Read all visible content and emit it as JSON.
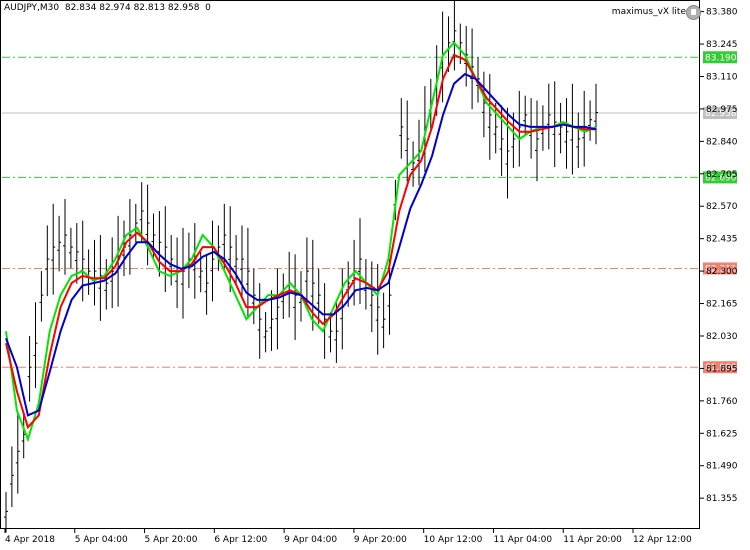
{
  "header": {
    "symbol": "AUDJPY,M30",
    "ohlc": "82.834 82.974 82.813 82.958",
    "extra": "0"
  },
  "indicator": {
    "name": "maximus_vX lite",
    "icon": "gear-icon"
  },
  "chart_data": {
    "type": "line",
    "title": "AUDJPY,M30",
    "ylim": [
      81.235,
      83.42
    ],
    "y_ticks": [
      "83.380",
      "83.245",
      "83.110",
      "82.975",
      "82.840",
      "82.705",
      "82.570",
      "82.435",
      "82.300",
      "82.165",
      "82.030",
      "81.895",
      "81.760",
      "81.625",
      "81.490",
      "81.355"
    ],
    "x_ticks": [
      "4 Apr 2018",
      "5 Apr 04:00",
      "5 Apr 20:00",
      "6 Apr 12:00",
      "9 Apr 04:00",
      "9 Apr 20:00",
      "10 Apr 12:00",
      "11 Apr 04:00",
      "11 Apr 20:00",
      "12 Apr 12:00"
    ],
    "levels": [
      {
        "value": 83.19,
        "label": "83.190",
        "color": "#32cd32",
        "style": "dashdot"
      },
      {
        "value": 82.958,
        "label": "82.958",
        "color": "#c0c0c0",
        "style": "solid"
      },
      {
        "value": 82.69,
        "label": "82.690",
        "color": "#32cd32",
        "style": "dashdot"
      },
      {
        "value": 82.311,
        "label": "82.311",
        "color": "#f08070",
        "style": "dashdot"
      },
      {
        "value": 81.9,
        "label": "81.900",
        "color": "#f08070",
        "style": "dashdot"
      }
    ],
    "price_bars": [
      81.3,
      81.45,
      81.55,
      81.62,
      81.9,
      82.0,
      82.2,
      82.35,
      82.4,
      82.42,
      82.45,
      82.4,
      82.38,
      82.35,
      82.3,
      82.3,
      82.28,
      82.25,
      82.3,
      82.35,
      82.4,
      82.45,
      82.5,
      82.55,
      82.5,
      82.45,
      82.42,
      82.4,
      82.35,
      82.3,
      82.3,
      82.35,
      82.35,
      82.3,
      82.25,
      82.35,
      82.4,
      82.45,
      82.4,
      82.35,
      82.35,
      82.3,
      82.2,
      82.1,
      82.05,
      82.1,
      82.15,
      82.2,
      82.25,
      82.2,
      82.2,
      82.3,
      82.25,
      82.2,
      82.1,
      82.05,
      82.05,
      82.15,
      82.25,
      82.3,
      82.35,
      82.25,
      82.2,
      82.15,
      82.1,
      82.2,
      82.6,
      82.9,
      82.85,
      82.75,
      82.8,
      82.9,
      83.0,
      83.1,
      83.2,
      83.25,
      83.3,
      83.25,
      83.2,
      83.15,
      83.1,
      83.0,
      82.95,
      82.9,
      82.85,
      82.8,
      82.85,
      82.9,
      82.95,
      82.9,
      82.85,
      82.9,
      82.95,
      82.92,
      82.9,
      82.88,
      82.9,
      82.85,
      82.9,
      82.93,
      82.96
    ],
    "series": [
      {
        "name": "green",
        "color": "#00e600",
        "values": [
          82.05,
          81.72,
          81.6,
          81.75,
          82.05,
          82.2,
          82.28,
          82.3,
          82.26,
          82.28,
          82.35,
          82.45,
          82.48,
          82.4,
          82.3,
          82.28,
          82.3,
          82.35,
          82.45,
          82.4,
          82.3,
          82.2,
          82.1,
          82.15,
          82.2,
          82.2,
          82.25,
          82.2,
          82.1,
          82.05,
          82.15,
          82.25,
          82.3,
          82.25,
          82.2,
          82.35,
          82.7,
          82.75,
          82.8,
          83.0,
          83.2,
          83.25,
          83.2,
          83.1,
          83.0,
          82.95,
          82.9,
          82.85,
          82.88,
          82.9,
          82.9,
          82.92,
          82.9,
          82.88,
          82.9
        ]
      },
      {
        "name": "red",
        "color": "#ff0000",
        "values": [
          82.0,
          81.8,
          81.65,
          81.7,
          81.95,
          82.15,
          82.25,
          82.28,
          82.27,
          82.27,
          82.32,
          82.42,
          82.46,
          82.42,
          82.34,
          82.3,
          82.3,
          82.33,
          82.4,
          82.4,
          82.33,
          82.25,
          82.15,
          82.15,
          82.18,
          82.2,
          82.22,
          82.2,
          82.13,
          82.08,
          82.12,
          82.2,
          82.27,
          82.25,
          82.22,
          82.3,
          82.55,
          82.7,
          82.76,
          82.9,
          83.1,
          83.2,
          83.18,
          83.1,
          83.02,
          82.97,
          82.92,
          82.88,
          82.88,
          82.89,
          82.9,
          82.91,
          82.9,
          82.89,
          82.89
        ]
      },
      {
        "name": "blue",
        "color": "#0000cc",
        "values": [
          82.02,
          81.9,
          81.7,
          81.72,
          81.88,
          82.05,
          82.18,
          82.24,
          82.25,
          82.26,
          82.29,
          82.36,
          82.42,
          82.42,
          82.37,
          82.33,
          82.31,
          82.32,
          82.36,
          82.38,
          82.35,
          82.29,
          82.21,
          82.18,
          82.18,
          82.19,
          82.21,
          82.2,
          82.16,
          82.12,
          82.12,
          82.16,
          82.22,
          82.23,
          82.22,
          82.25,
          82.4,
          82.56,
          82.66,
          82.78,
          82.95,
          83.08,
          83.12,
          83.1,
          83.05,
          83.0,
          82.95,
          82.91,
          82.9,
          82.9,
          82.9,
          82.91,
          82.9,
          82.9,
          82.89
        ]
      }
    ]
  }
}
